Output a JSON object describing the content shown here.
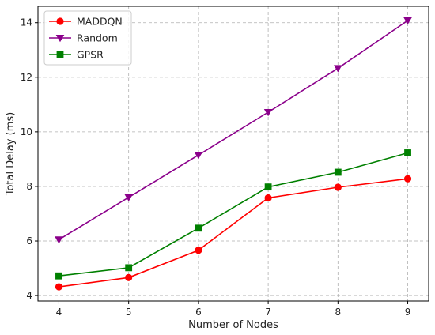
{
  "chart_data": {
    "type": "line",
    "x": [
      4,
      5,
      6,
      7,
      8,
      9
    ],
    "xlabel": "Number of Nodes",
    "ylabel": "Total Delay (ms)",
    "xlim": [
      3.7,
      9.3
    ],
    "ylim": [
      3.8,
      14.6
    ],
    "xticks": [
      4,
      5,
      6,
      7,
      8,
      9
    ],
    "yticks": [
      4,
      6,
      8,
      10,
      12,
      14
    ],
    "grid": true,
    "legend_position": "top-left",
    "series": [
      {
        "name": "MADDQN",
        "color": "#ff0000",
        "marker": "circle",
        "values": [
          4.32,
          4.66,
          5.66,
          7.58,
          7.97,
          8.28
        ]
      },
      {
        "name": "Random",
        "color": "#8b008b",
        "marker": "triangle-down",
        "values": [
          6.05,
          7.6,
          9.15,
          10.72,
          12.33,
          14.08
        ]
      },
      {
        "name": "GPSR",
        "color": "#008000",
        "marker": "square",
        "values": [
          4.72,
          5.02,
          6.47,
          7.98,
          8.52,
          9.23
        ]
      }
    ]
  }
}
